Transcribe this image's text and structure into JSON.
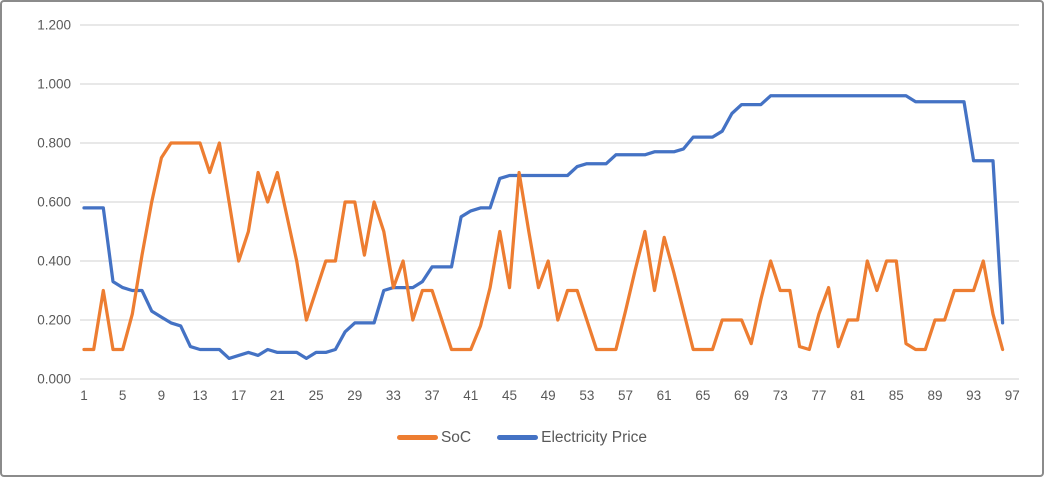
{
  "chart_data": {
    "type": "line",
    "title": "",
    "xlabel": "",
    "ylabel": "",
    "x_start": 1,
    "x_tick_labels": [
      "1",
      "5",
      "9",
      "13",
      "17",
      "21",
      "25",
      "29",
      "33",
      "37",
      "41",
      "45",
      "49",
      "53",
      "57",
      "61",
      "65",
      "69",
      "73",
      "77",
      "81",
      "85",
      "89",
      "93",
      "97"
    ],
    "ylim": [
      0,
      1.2
    ],
    "ytick_step": 0.2,
    "ytick_labels": [
      "0.000",
      "0.200",
      "0.400",
      "0.600",
      "0.800",
      "1.000",
      "1.200"
    ],
    "grid": true,
    "legend_position": "bottom",
    "colors": {
      "gridline": "#d9d9d9",
      "axis_text": "#595959",
      "frame_border": "#8b8b8b",
      "background": "#ffffff"
    },
    "series": [
      {
        "name": "SoC",
        "color": "#ED7D31",
        "values": [
          0.1,
          0.1,
          0.3,
          0.1,
          0.1,
          0.22,
          0.42,
          0.6,
          0.75,
          0.8,
          0.8,
          0.8,
          0.8,
          0.7,
          0.8,
          0.6,
          0.4,
          0.5,
          0.7,
          0.6,
          0.7,
          0.55,
          0.4,
          0.2,
          0.3,
          0.4,
          0.4,
          0.6,
          0.6,
          0.42,
          0.6,
          0.5,
          0.31,
          0.4,
          0.2,
          0.3,
          0.3,
          0.2,
          0.1,
          0.1,
          0.1,
          0.18,
          0.31,
          0.5,
          0.31,
          0.7,
          0.5,
          0.31,
          0.4,
          0.2,
          0.3,
          0.3,
          0.2,
          0.1,
          0.1,
          0.1,
          0.23,
          0.37,
          0.5,
          0.3,
          0.48,
          0.36,
          0.23,
          0.1,
          0.1,
          0.1,
          0.2,
          0.2,
          0.2,
          0.12,
          0.27,
          0.4,
          0.3,
          0.3,
          0.11,
          0.1,
          0.22,
          0.31,
          0.11,
          0.2,
          0.2,
          0.4,
          0.3,
          0.4,
          0.4,
          0.12,
          0.1,
          0.1,
          0.2,
          0.2,
          0.3,
          0.3,
          0.3,
          0.4,
          0.22,
          0.1
        ]
      },
      {
        "name": "Electricity Price",
        "color": "#4472C4",
        "values": [
          0.58,
          0.58,
          0.58,
          0.33,
          0.31,
          0.3,
          0.3,
          0.23,
          0.21,
          0.19,
          0.18,
          0.11,
          0.1,
          0.1,
          0.1,
          0.07,
          0.08,
          0.09,
          0.08,
          0.1,
          0.09,
          0.09,
          0.09,
          0.07,
          0.09,
          0.09,
          0.1,
          0.16,
          0.19,
          0.19,
          0.19,
          0.3,
          0.31,
          0.31,
          0.31,
          0.33,
          0.38,
          0.38,
          0.38,
          0.55,
          0.57,
          0.58,
          0.58,
          0.68,
          0.69,
          0.69,
          0.69,
          0.69,
          0.69,
          0.69,
          0.69,
          0.72,
          0.73,
          0.73,
          0.73,
          0.76,
          0.76,
          0.76,
          0.76,
          0.77,
          0.77,
          0.77,
          0.78,
          0.82,
          0.82,
          0.82,
          0.84,
          0.9,
          0.93,
          0.93,
          0.93,
          0.96,
          0.96,
          0.96,
          0.96,
          0.96,
          0.96,
          0.96,
          0.96,
          0.96,
          0.96,
          0.96,
          0.96,
          0.96,
          0.96,
          0.96,
          0.94,
          0.94,
          0.94,
          0.94,
          0.94,
          0.94,
          0.74,
          0.74,
          0.74,
          0.19
        ]
      }
    ]
  },
  "legend": {
    "soc_label": "SoC",
    "price_label": "Electricity Price"
  }
}
